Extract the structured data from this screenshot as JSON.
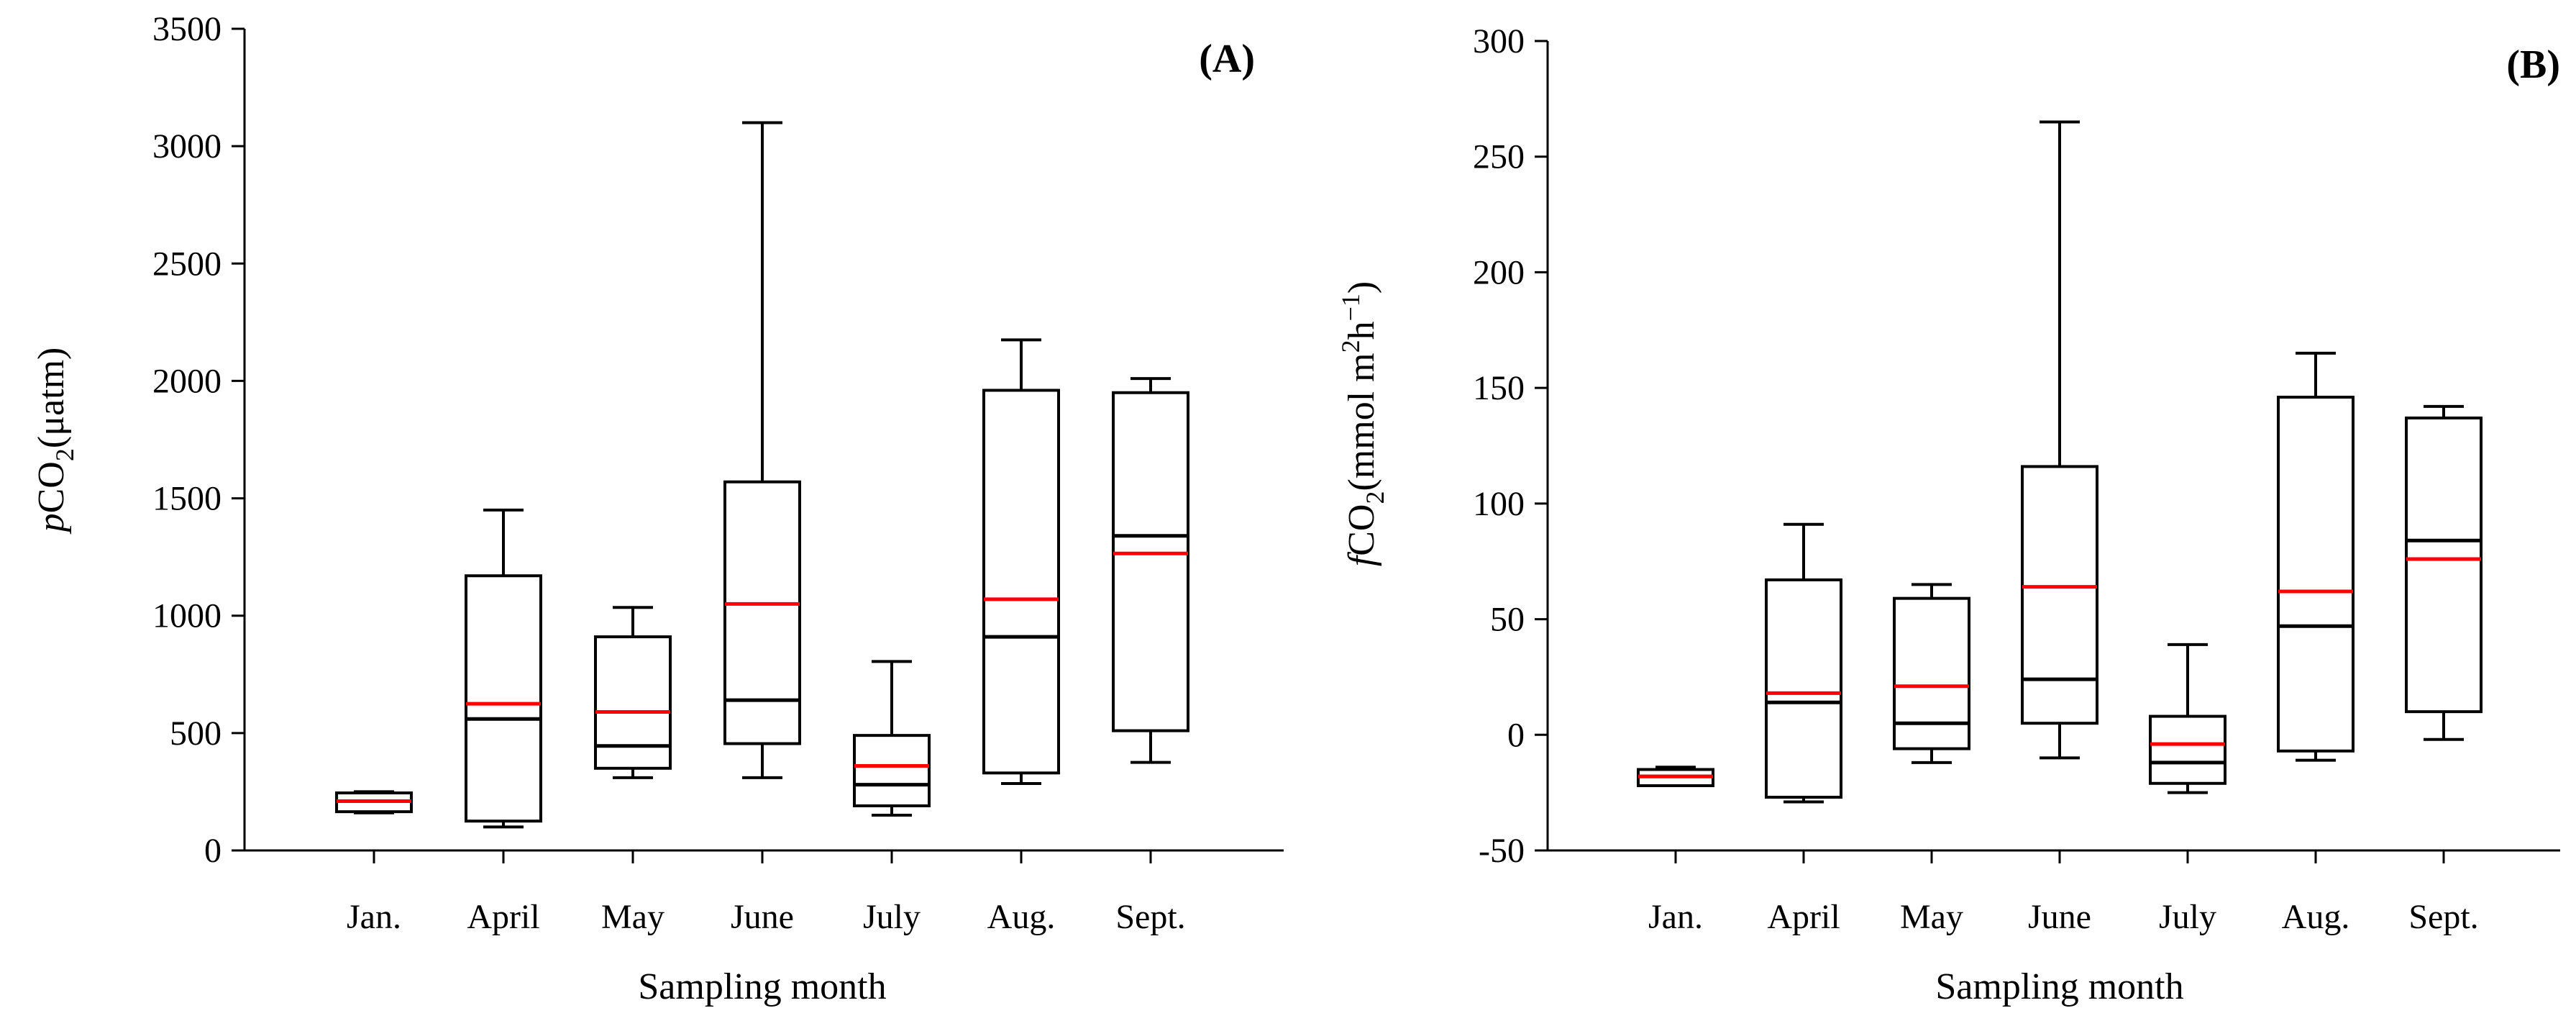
{
  "colors": {
    "mean_line": "#ff0000",
    "box": "#000000"
  },
  "chart_data": [
    {
      "type": "box",
      "panel_label": "(A)",
      "xlabel": "Sampling month",
      "ylabel": {
        "italic": "p",
        "base": "CO",
        "sub": "2",
        "rest": "(μatm)"
      },
      "ylim": [
        0,
        3500
      ],
      "yticks": [
        0,
        500,
        1000,
        1500,
        2000,
        2500,
        3000,
        3500
      ],
      "categories": [
        "Jan.",
        "April",
        "May",
        "June",
        "July",
        "Aug.",
        "Sept."
      ],
      "boxes": [
        {
          "category": "Jan.",
          "whisker_low": 160,
          "q1": 165,
          "median": 210,
          "mean": 210,
          "q3": 245,
          "whisker_high": 250
        },
        {
          "category": "April",
          "whisker_low": 100,
          "q1": 125,
          "median": 560,
          "mean": 625,
          "q3": 1170,
          "whisker_high": 1450
        },
        {
          "category": "May",
          "whisker_low": 310,
          "q1": 350,
          "median": 445,
          "mean": 590,
          "q3": 910,
          "whisker_high": 1035
        },
        {
          "category": "June",
          "whisker_low": 310,
          "q1": 455,
          "median": 640,
          "mean": 1050,
          "q3": 1570,
          "whisker_high": 3100
        },
        {
          "category": "July",
          "whisker_low": 150,
          "q1": 190,
          "median": 280,
          "mean": 360,
          "q3": 490,
          "whisker_high": 805
        },
        {
          "category": "Aug.",
          "whisker_low": 285,
          "q1": 330,
          "median": 910,
          "mean": 1070,
          "q3": 1960,
          "whisker_high": 2175
        },
        {
          "category": "Sept.",
          "whisker_low": 375,
          "q1": 510,
          "median": 1340,
          "mean": 1265,
          "q3": 1950,
          "whisker_high": 2010
        }
      ]
    },
    {
      "type": "box",
      "panel_label": "(B)",
      "xlabel": "Sampling month",
      "ylabel": {
        "italic": "f",
        "base": "CO",
        "sub": "2",
        "rest": "(mmol m",
        "sup1": "2",
        "mid": "h",
        "sup2": "−1",
        "end": ")"
      },
      "ylim": [
        -50,
        300
      ],
      "yticks": [
        -50,
        0,
        50,
        100,
        150,
        200,
        250,
        300
      ],
      "categories": [
        "Jan.",
        "April",
        "May",
        "June",
        "July",
        "Aug.",
        "Sept."
      ],
      "boxes": [
        {
          "category": "Jan.",
          "whisker_low": -22,
          "q1": -22,
          "median": -18,
          "mean": -18,
          "q3": -15,
          "whisker_high": -14
        },
        {
          "category": "April",
          "whisker_low": -29,
          "q1": -27,
          "median": 14,
          "mean": 18,
          "q3": 67,
          "whisker_high": 91
        },
        {
          "category": "May",
          "whisker_low": -12,
          "q1": -6,
          "median": 5,
          "mean": 21,
          "q3": 59,
          "whisker_high": 65
        },
        {
          "category": "June",
          "whisker_low": -10,
          "q1": 5,
          "median": 24,
          "mean": 64,
          "q3": 116,
          "whisker_high": 265
        },
        {
          "category": "July",
          "whisker_low": -25,
          "q1": -21,
          "median": -12,
          "mean": -4,
          "q3": 8,
          "whisker_high": 39
        },
        {
          "category": "Aug.",
          "whisker_low": -11,
          "q1": -7,
          "median": 47,
          "mean": 62,
          "q3": 146,
          "whisker_high": 165
        },
        {
          "category": "Sept.",
          "whisker_low": -2,
          "q1": 10,
          "median": 84,
          "mean": 76,
          "q3": 137,
          "whisker_high": 142
        }
      ]
    }
  ]
}
